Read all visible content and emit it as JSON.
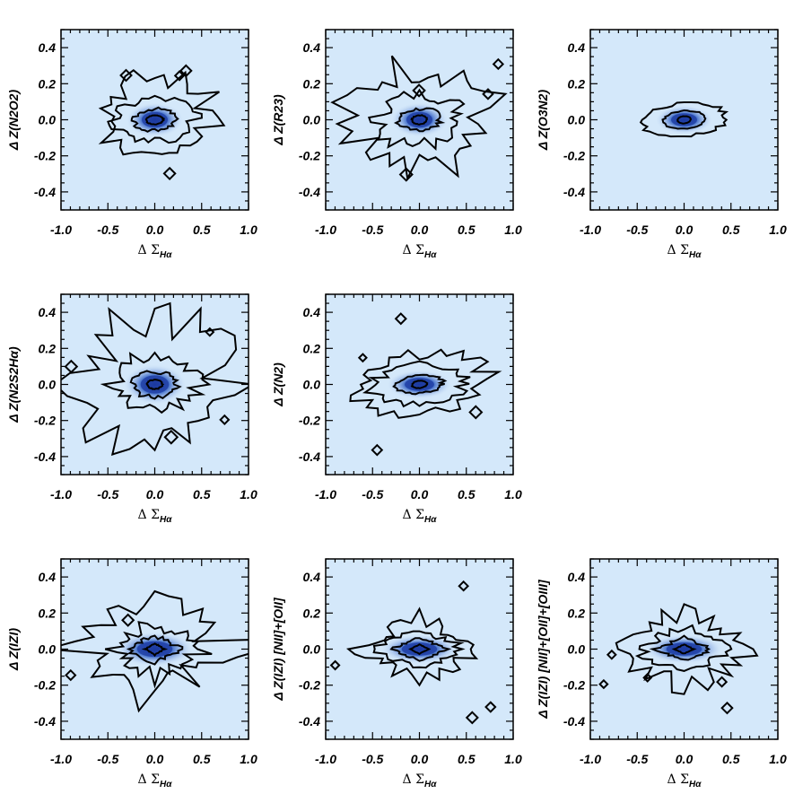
{
  "figure": {
    "xlabel_delta": "Δ",
    "xlabel_sigma": "Σ",
    "xlabel_sub": "Hα",
    "xticks": [
      "-1.0",
      "-0.5",
      "0.0",
      "0.5",
      "1.0"
    ],
    "yticks": [
      "0.4",
      "0.2",
      "0.0",
      "-0.2",
      "-0.4"
    ]
  },
  "chart_data": [
    {
      "type": "heatmap",
      "ylabel": "Δ Z(N2O2)",
      "xlabel": "Δ ΣHα",
      "xlim": [
        -1.0,
        1.0
      ],
      "ylim": [
        -0.5,
        0.5
      ],
      "peak": [
        0.0,
        0.0
      ],
      "contours": 4,
      "colors": {
        "background": "#d4e8fa",
        "core": "#1c3aa0",
        "contour": "#000000"
      }
    },
    {
      "type": "heatmap",
      "ylabel": "Δ Z(R23)",
      "xlabel": "Δ ΣHα",
      "xlim": [
        -1.0,
        1.0
      ],
      "ylim": [
        -0.5,
        0.5
      ],
      "peak": [
        0.0,
        0.0
      ],
      "contours": 4,
      "colors": {
        "background": "#d4e8fa",
        "core": "#1c3aa0",
        "contour": "#000000"
      }
    },
    {
      "type": "heatmap",
      "ylabel": "Δ Z(O3N2)",
      "xlabel": "Δ ΣHα",
      "xlim": [
        -1.0,
        1.0
      ],
      "ylim": [
        -0.5,
        0.5
      ],
      "peak": [
        0.0,
        0.0
      ],
      "contours": 3,
      "colors": {
        "background": "#d4e8fa",
        "core": "#1c3aa0",
        "contour": "#000000"
      }
    },
    {
      "type": "heatmap",
      "ylabel": "Δ Z(N2S2Hα)",
      "xlabel": "Δ ΣHα",
      "xlim": [
        -1.0,
        1.0
      ],
      "ylim": [
        -0.5,
        0.5
      ],
      "peak": [
        0.0,
        0.0
      ],
      "contours": 4,
      "colors": {
        "background": "#d4e8fa",
        "core": "#1c3aa0",
        "contour": "#000000"
      }
    },
    {
      "type": "heatmap",
      "ylabel": "Δ Z(N2)",
      "xlabel": "Δ ΣHα",
      "xlim": [
        -1.0,
        1.0
      ],
      "ylim": [
        -0.5,
        0.5
      ],
      "peak": [
        0.0,
        0.0
      ],
      "contours": 4,
      "colors": {
        "background": "#d4e8fa",
        "core": "#1c3aa0",
        "contour": "#000000"
      }
    },
    {
      "type": "heatmap",
      "ylabel": "Δ Z(IZI)",
      "xlabel": "Δ ΣHα",
      "xlim": [
        -1.0,
        1.0
      ],
      "ylim": [
        -0.5,
        0.5
      ],
      "peak": [
        0.0,
        0.0
      ],
      "contours": 4,
      "colors": {
        "background": "#d4e8fa",
        "core": "#1c3aa0",
        "contour": "#000000"
      }
    },
    {
      "type": "heatmap",
      "ylabel": "Δ Z(IZI) [NII]+[OII]",
      "xlabel": "Δ ΣHα",
      "xlim": [
        -1.0,
        1.0
      ],
      "ylim": [
        -0.5,
        0.5
      ],
      "peak": [
        0.0,
        0.0
      ],
      "contours": 4,
      "colors": {
        "background": "#d4e8fa",
        "core": "#1c3aa0",
        "contour": "#000000"
      }
    },
    {
      "type": "heatmap",
      "ylabel": "Δ Z(IZI) [NII]+[OII]+[OIII]",
      "xlabel": "Δ ΣHα",
      "xlim": [
        -1.0,
        1.0
      ],
      "ylim": [
        -0.5,
        0.5
      ],
      "peak": [
        0.0,
        0.0
      ],
      "contours": 4,
      "colors": {
        "background": "#d4e8fa",
        "core": "#1c3aa0",
        "contour": "#000000"
      }
    }
  ]
}
